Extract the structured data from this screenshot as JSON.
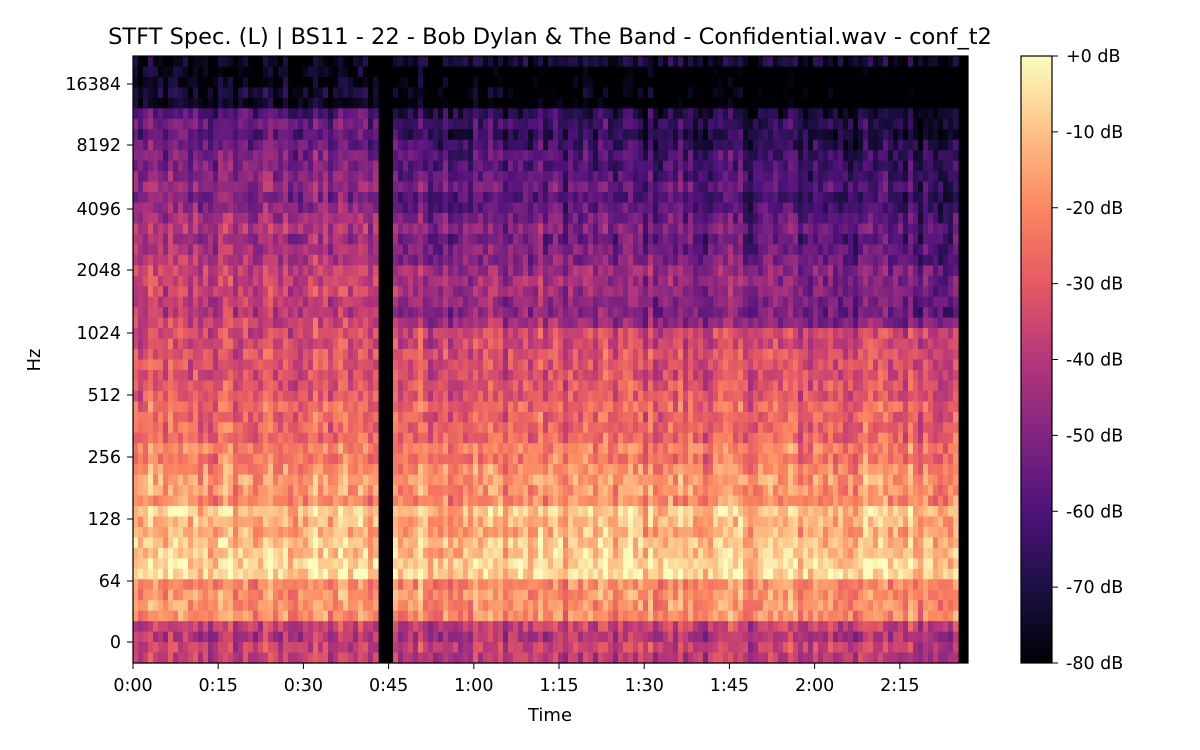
{
  "chart_data": {
    "type": "heatmap",
    "title": "STFT Spec. (L) | BS11 - 22 - Bob Dylan & The Band - Confidential.wav - conf_t2",
    "xlabel": "Time",
    "ylabel": "Hz",
    "x_ticks": [
      "0:00",
      "0:15",
      "0:30",
      "0:45",
      "1:00",
      "1:15",
      "1:30",
      "1:45",
      "2:00",
      "2:15"
    ],
    "x_tick_seconds": [
      0,
      15,
      30,
      45,
      60,
      75,
      90,
      105,
      120,
      135
    ],
    "x_range_seconds": [
      0,
      147
    ],
    "y_scale": "symlog (base 2)",
    "y_ticks": [
      "0",
      "64",
      "128",
      "256",
      "512",
      "1024",
      "2048",
      "4096",
      "8192",
      "16384"
    ],
    "y_tick_values": [
      0,
      64,
      128,
      256,
      512,
      1024,
      2048,
      4096,
      8192,
      16384
    ],
    "colorbar": {
      "colormap": "magma",
      "range_db": [
        -80,
        0
      ],
      "ticks": [
        "+0 dB",
        "-10 dB",
        "-20 dB",
        "-30 dB",
        "-40 dB",
        "-50 dB",
        "-60 dB",
        "-70 dB",
        "-80 dB"
      ],
      "tick_values_db": [
        0,
        -10,
        -20,
        -30,
        -40,
        -50,
        -60,
        -70,
        -80
      ]
    },
    "silent_gap_seconds": [
      43,
      46
    ],
    "grid": false
  }
}
